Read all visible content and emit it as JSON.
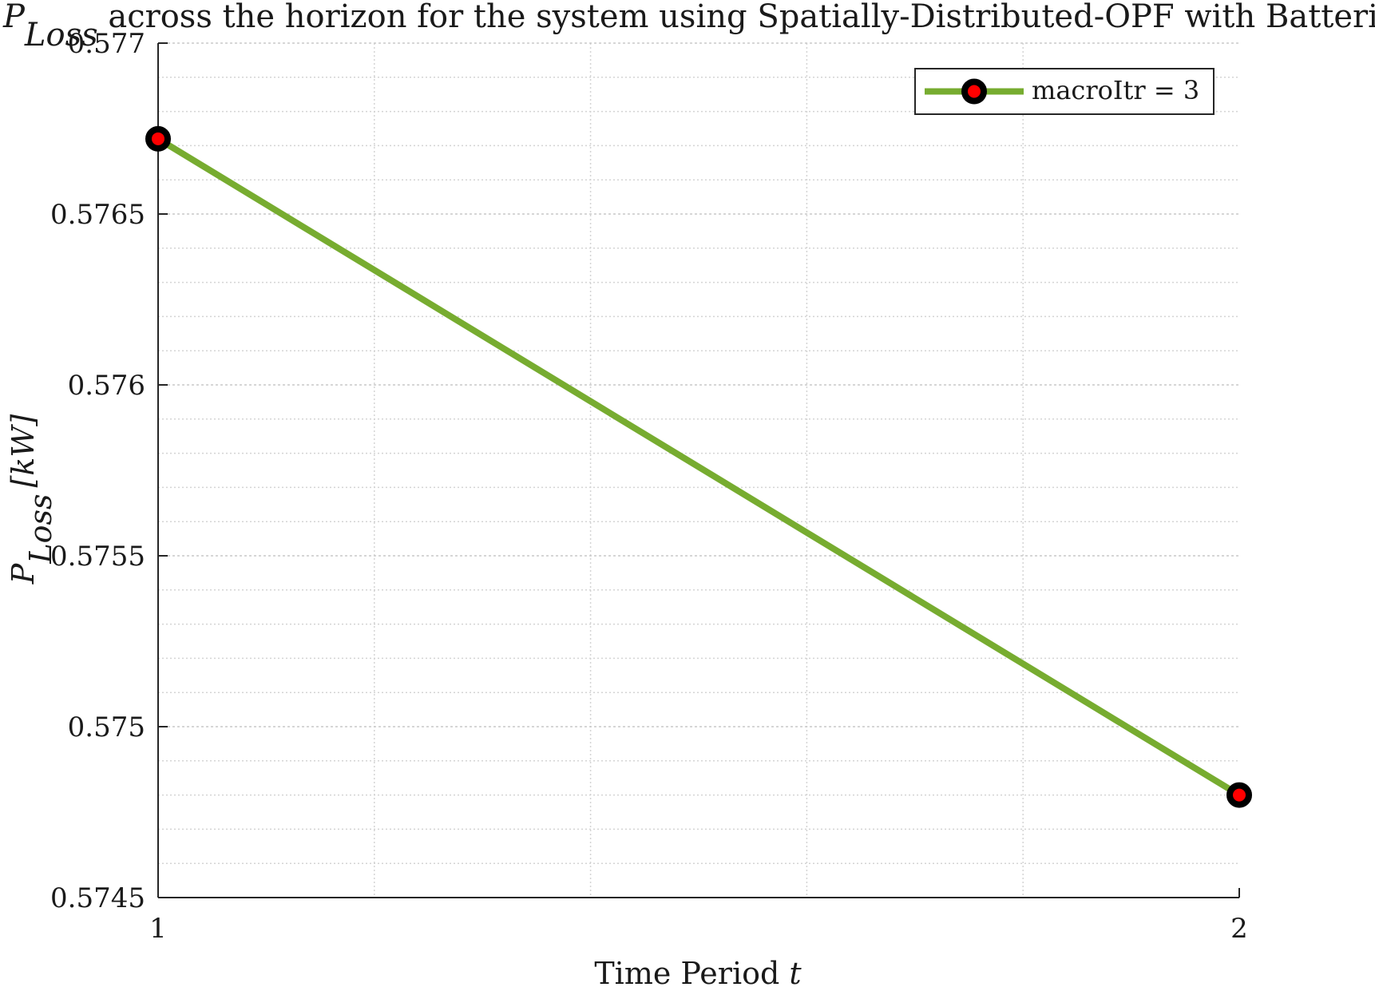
{
  "chart_data": {
    "type": "line",
    "title": {
      "symbol": "P",
      "symbol_sub": "Loss",
      "text": " across the horizon for the system using Spatially-Distributed-OPF with Batteries"
    },
    "xlabel": {
      "text": "Time Period ",
      "symbol": "t"
    },
    "ylabel": {
      "symbol": "P",
      "symbol_sub": "Loss",
      "unit": "[kW]"
    },
    "x_ticks": [
      1,
      2
    ],
    "x_tick_labels": [
      "1",
      "2"
    ],
    "xlim": [
      1,
      2
    ],
    "y_ticks": [
      0.5745,
      0.575,
      0.5755,
      0.576,
      0.5765,
      0.577
    ],
    "y_tick_labels": [
      "0.5745",
      "0.575",
      "0.5755",
      "0.576",
      "0.5765",
      "0.577"
    ],
    "ylim": [
      0.5745,
      0.577
    ],
    "grid": true,
    "minor_grid": true,
    "legend_position": "top-right",
    "series": [
      {
        "name": "macroItr = 3",
        "x": [
          1,
          2
        ],
        "y": [
          0.57672,
          0.5748
        ],
        "color": "#77ac30",
        "marker_edge_color": "#000000",
        "marker_face_color": "#ff0000"
      }
    ]
  }
}
